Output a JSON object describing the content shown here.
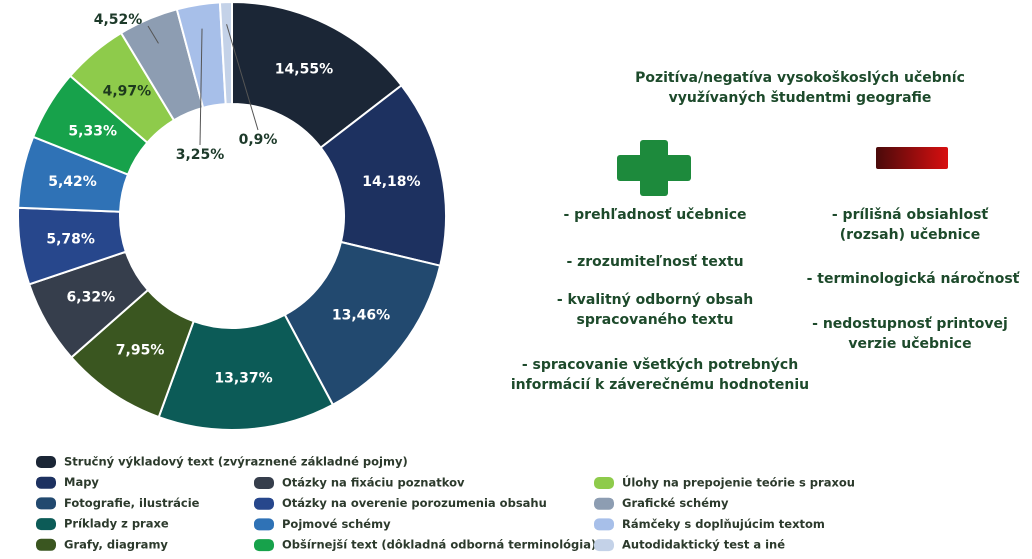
{
  "chart_data": {
    "type": "donut",
    "categories": [
      "Stručný výkladový text (zvýraznené základné pojmy)",
      "Mapy",
      "Fotografie, ilustrácie",
      "Príklady z praxe",
      "Grafy, diagramy",
      "Otázky na fixáciu poznatkov",
      "Otázky na overenie porozumenia obsahu",
      "Pojmové schémy",
      "Obšírnejší text (dôkladná odborná terminológia)",
      "Úlohy na prepojenie teórie s praxou",
      "Grafické schémy",
      "Rámčeky s doplňujúcim textom",
      "Autodidaktický test a iné"
    ],
    "values": [
      14.55,
      14.18,
      13.46,
      13.37,
      7.95,
      6.32,
      5.78,
      5.42,
      5.33,
      4.97,
      4.52,
      3.25,
      0.9
    ],
    "value_labels": [
      "14,55%",
      "14,18%",
      "13,46%",
      "13,37%",
      "7,95%",
      "6,32%",
      "5,78%",
      "5,42%",
      "5,33%",
      "4,97%",
      "4,52%",
      "3,25%",
      "0,9%"
    ],
    "colors": [
      "#1b2636",
      "#1d3160",
      "#22496f",
      "#0c5b57",
      "#3a5620",
      "#363e4c",
      "#27478c",
      "#2f72b6",
      "#17a24b",
      "#8ecb4b",
      "#8d9db2",
      "#a7bfe9",
      "#c4d2e8"
    ]
  },
  "panel": {
    "title": [
      "Pozitíva/negatíva vysokoškoslých učebníc",
      "využívaných študentmi geografie"
    ],
    "positives": [
      [
        "- prehľadnosť učebnice"
      ],
      [
        "- zrozumiteľnosť textu"
      ],
      [
        "- kvalitný odborný obsah",
        "spracovaného textu"
      ],
      [
        "- spracovanie všetkých potrebných",
        "informácií k záverečnému hodnoteniu"
      ]
    ],
    "negatives": [
      [
        "- prílišná obsiahlosť",
        "(rozsah) učebnice"
      ],
      [
        "- terminologická náročnosť"
      ],
      [
        "- nedostupnosť printovej",
        "verzie učebnice"
      ]
    ]
  }
}
